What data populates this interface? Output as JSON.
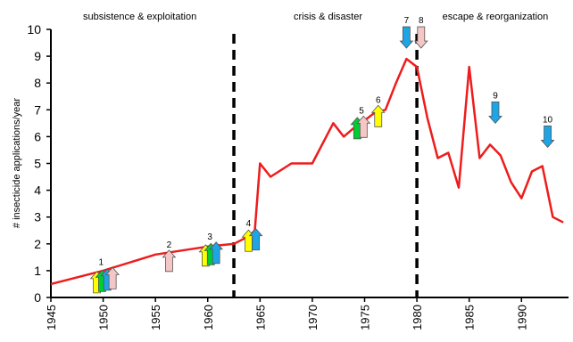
{
  "chart_data": {
    "type": "line",
    "title": "",
    "xlabel": "",
    "ylabel": "# insecticide applications/year",
    "xlim": [
      1945,
      1994.5
    ],
    "ylim": [
      0,
      10
    ],
    "x_ticks": [
      1945,
      1950,
      1955,
      1960,
      1965,
      1970,
      1975,
      1980,
      1985,
      1990
    ],
    "x_tick_labels": [
      "1945",
      "1950",
      "1955",
      "1960",
      "1965",
      "1970",
      "1975",
      "1980",
      "1985",
      "1990"
    ],
    "y_ticks": [
      0,
      1,
      2,
      3,
      4,
      5,
      6,
      7,
      8,
      9,
      10
    ],
    "y_tick_labels": [
      "0",
      "1",
      "2",
      "3",
      "4",
      "5",
      "6",
      "7",
      "8",
      "9",
      "10"
    ],
    "grid": false,
    "series": [
      {
        "color": "#ee1c1c",
        "x": [
          1945,
          1950,
          1955,
          1960,
          1962.5,
          1964,
          1964.5,
          1965,
          1966,
          1968,
          1970,
          1972,
          1973,
          1974.5,
          1975,
          1976,
          1977,
          1978,
          1979,
          1980,
          1981,
          1982,
          1983,
          1984,
          1985,
          1986,
          1987,
          1988,
          1989,
          1990,
          1991,
          1992,
          1993,
          1994
        ],
        "y": [
          0.5,
          1.0,
          1.6,
          1.9,
          2.0,
          2.3,
          2.5,
          5.0,
          4.5,
          5.0,
          5.0,
          6.5,
          6.0,
          6.5,
          6.6,
          6.9,
          7.0,
          8.0,
          8.9,
          8.6,
          6.7,
          5.2,
          5.4,
          4.1,
          8.6,
          5.2,
          5.7,
          5.3,
          4.3,
          3.7,
          4.7,
          4.9,
          3.0,
          2.8
        ]
      }
    ],
    "phase_dividers": [
      1962.5,
      1980
    ],
    "phases": [
      {
        "label": "subsistence & exploitation",
        "x_center": 1953.5
      },
      {
        "label": "crisis & disaster",
        "x_center": 1971.5
      },
      {
        "label": "escape & reorganization",
        "x_center": 1987.5
      }
    ],
    "events": [
      {
        "label": "1",
        "x": 1949.8,
        "y": 1.05,
        "direction": "up",
        "arrows": [
          {
            "x": 1949.4,
            "color": "#ffff00"
          },
          {
            "x": 1949.9,
            "color": "#00cc33"
          },
          {
            "x": 1950.4,
            "color": "#1ea5e6"
          },
          {
            "x": 1950.9,
            "color": "#f5c6c6"
          }
        ]
      },
      {
        "label": "2",
        "x": 1956.3,
        "y": 1.7,
        "direction": "up",
        "arrows": [
          {
            "x": 1956.3,
            "color": "#f5c6c6"
          }
        ]
      },
      {
        "label": "3",
        "x": 1960.2,
        "y": 2.0,
        "direction": "up",
        "arrows": [
          {
            "x": 1959.8,
            "color": "#ffff00"
          },
          {
            "x": 1960.3,
            "color": "#00cc33"
          },
          {
            "x": 1960.8,
            "color": "#1ea5e6"
          }
        ]
      },
      {
        "label": "4",
        "x": 1963.9,
        "y": 2.5,
        "direction": "up",
        "arrows": [
          {
            "x": 1963.9,
            "color": "#ffff00"
          },
          {
            "x": 1964.6,
            "color": "#1ea5e6"
          }
        ]
      },
      {
        "label": "5",
        "x": 1974.7,
        "y": 6.7,
        "direction": "up",
        "arrows": [
          {
            "x": 1974.3,
            "color": "#00cc33"
          },
          {
            "x": 1974.9,
            "color": "#f5c6c6"
          }
        ]
      },
      {
        "label": "6",
        "x": 1976.3,
        "y": 7.1,
        "direction": "up",
        "arrows": [
          {
            "x": 1976.3,
            "color": "#ffff00"
          }
        ]
      },
      {
        "label": "7",
        "x": 1979.0,
        "y": 9.3,
        "direction": "down",
        "arrows": [
          {
            "x": 1979.0,
            "color": "#1ea5e6"
          }
        ]
      },
      {
        "label": "8",
        "x": 1980.4,
        "y": 9.3,
        "direction": "down",
        "arrows": [
          {
            "x": 1980.4,
            "color": "#f5c6c6"
          }
        ]
      },
      {
        "label": "9",
        "x": 1987.5,
        "y": 6.5,
        "direction": "down",
        "arrows": [
          {
            "x": 1987.5,
            "color": "#1ea5e6"
          }
        ]
      },
      {
        "label": "10",
        "x": 1992.5,
        "y": 5.6,
        "direction": "down",
        "arrows": [
          {
            "x": 1992.5,
            "color": "#1ea5e6"
          }
        ]
      }
    ]
  }
}
